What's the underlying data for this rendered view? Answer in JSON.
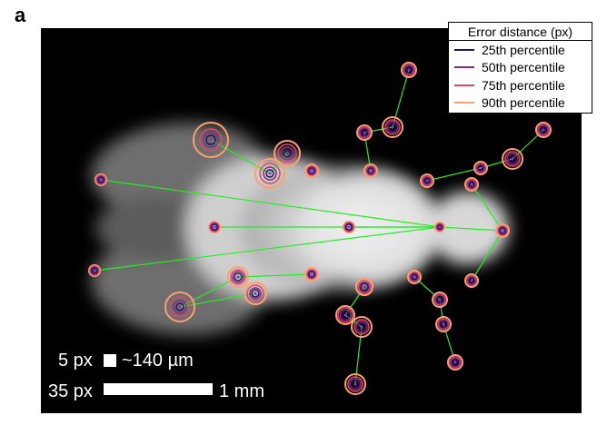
{
  "panel_label": "a",
  "legend": {
    "title": "Error distance (px)",
    "items": [
      {
        "label": "25th percentile",
        "color": "#2d1160"
      },
      {
        "label": "50th percentile",
        "color": "#8c2981"
      },
      {
        "label": "75th percentile",
        "color": "#de4968"
      },
      {
        "label": "90th percentile",
        "color": "#fe9f6d"
      }
    ]
  },
  "scale_bars": {
    "small_px": "5 px",
    "small_um": "~140 µm",
    "large_px": "35 px",
    "large_mm": "1 mm"
  },
  "colors": {
    "skeleton": "#22ee22",
    "marker": "#7b3fb0"
  }
}
